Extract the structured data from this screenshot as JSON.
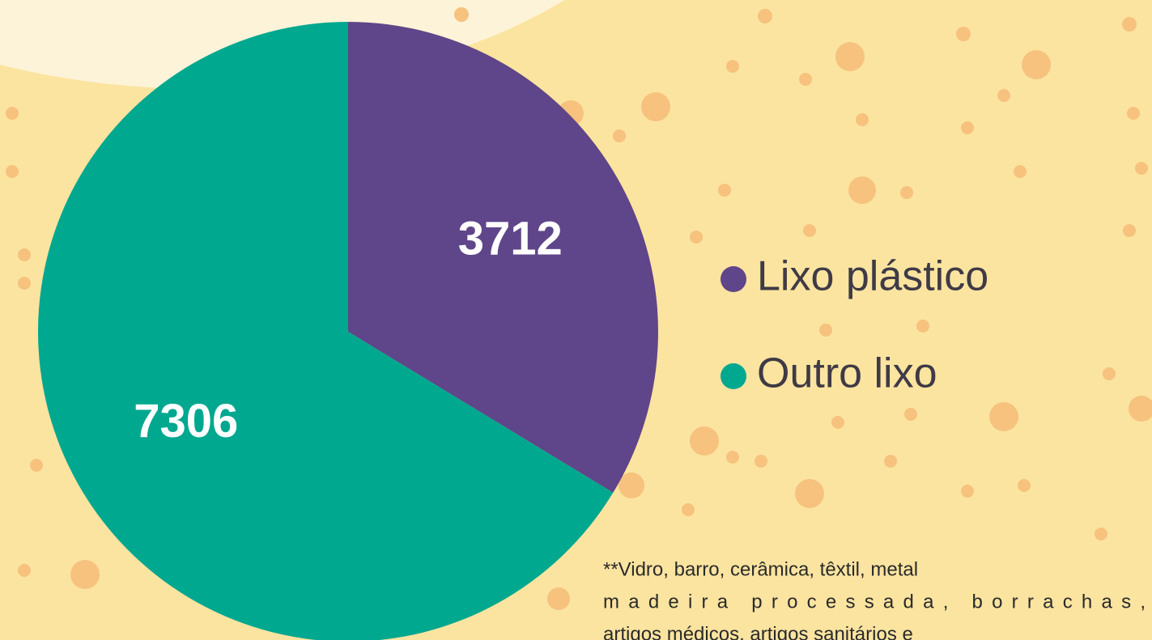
{
  "chart_data": {
    "type": "pie",
    "categories": [
      "Lixo plástico",
      "Outro lixo"
    ],
    "values": [
      3712,
      7306
    ],
    "colors": [
      "#5f4589",
      "#00a88f"
    ],
    "footnote": [
      "**Vidro, barro, cerâmica, têxtil, metal",
      "madeira processada, borrachas,",
      "artigos médicos, artigos sanitários e"
    ]
  }
}
